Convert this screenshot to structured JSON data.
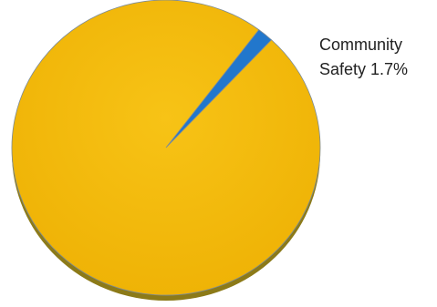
{
  "chart_data": {
    "type": "pie",
    "slices": [
      {
        "label": "Community Safety",
        "value": 1.7,
        "value_label": "1.7%",
        "color": "#2277CC",
        "labeled": true
      },
      {
        "label": "",
        "value": 98.3,
        "value_label": "",
        "color": "#F4BB0B",
        "labeled": false
      }
    ],
    "annotation": {
      "line1": "Community",
      "line2": "Safety 1.7%"
    },
    "start_angle_deg": 53,
    "style": "3d-tilted",
    "edge_color": "#7A8A9A",
    "shadow_color": "#8C7A18"
  }
}
